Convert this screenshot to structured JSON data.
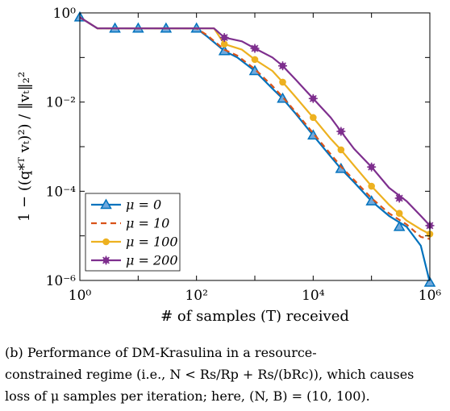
{
  "chart_data": {
    "type": "line",
    "xlabel": "# of samples (T) received",
    "ylabel": "1 − ((q*ᵀ vₜ)²) / ‖vₜ‖₂²",
    "xscale": "log",
    "yscale": "log",
    "xlim": [
      1,
      1000000
    ],
    "ylim": [
      1e-06,
      1
    ],
    "x_ticks": [
      {
        "value": 1,
        "label": "10⁰"
      },
      {
        "value": 100,
        "label": "10²"
      },
      {
        "value": 10000,
        "label": "10⁴"
      },
      {
        "value": 1000000,
        "label": "10⁶"
      }
    ],
    "y_ticks": [
      {
        "value": 1,
        "label": "10⁰"
      },
      {
        "value": 0.01,
        "label": "10⁻²"
      },
      {
        "value": 0.0001,
        "label": "10⁻⁴"
      },
      {
        "value": 1e-06,
        "label": "10⁻⁶"
      }
    ],
    "grid": false,
    "legend_position": "bottom-left",
    "series": [
      {
        "name": "μ = 0",
        "color": "#0072BD",
        "line_style": "solid",
        "marker": "triangle",
        "x": [
          1,
          2,
          4,
          10,
          30,
          100,
          150,
          300,
          500,
          1000,
          2000,
          3000,
          5000,
          10000,
          20000,
          30000,
          50000,
          100000,
          200000,
          400000,
          700000,
          1000000
        ],
        "y": [
          0.8,
          0.45,
          0.45,
          0.45,
          0.45,
          0.45,
          0.3,
          0.14,
          0.1,
          0.05,
          0.02,
          0.012,
          0.0055,
          0.0018,
          0.0006,
          0.00032,
          0.00016,
          6e-05,
          2.8e-05,
          1.6e-05,
          6e-06,
          9e-07
        ],
        "markers_x": [
          1,
          4,
          10,
          30,
          100,
          300,
          1000,
          3000,
          10000,
          30000,
          100000,
          300000,
          1000000
        ],
        "markers_y": [
          0.8,
          0.45,
          0.45,
          0.45,
          0.45,
          0.14,
          0.05,
          0.012,
          0.0018,
          0.00032,
          6e-05,
          1.6e-05,
          9e-07
        ]
      },
      {
        "name": "μ = 10",
        "color": "#D95319",
        "line_style": "dashed",
        "marker": "none",
        "x": [
          1,
          2,
          4,
          10,
          30,
          100,
          150,
          300,
          500,
          1000,
          2000,
          3000,
          5000,
          10000,
          20000,
          30000,
          50000,
          100000,
          200000,
          400000,
          700000,
          1000000
        ],
        "y": [
          0.8,
          0.45,
          0.45,
          0.45,
          0.45,
          0.45,
          0.32,
          0.15,
          0.11,
          0.055,
          0.023,
          0.013,
          0.006,
          0.002,
          0.00068,
          0.00036,
          0.00018,
          7e-05,
          3.2e-05,
          1.8e-05,
          9.5e-06,
          8.5e-06
        ]
      },
      {
        "name": "μ = 100",
        "color": "#EDB120",
        "line_style": "solid",
        "marker": "circle",
        "x": [
          1,
          2,
          4,
          10,
          30,
          100,
          200,
          300,
          600,
          1000,
          2000,
          3000,
          5000,
          10000,
          20000,
          30000,
          50000,
          100000,
          200000,
          400000,
          700000,
          1000000
        ],
        "y": [
          0.8,
          0.45,
          0.45,
          0.45,
          0.45,
          0.45,
          0.45,
          0.2,
          0.15,
          0.09,
          0.05,
          0.028,
          0.013,
          0.0045,
          0.0015,
          0.00085,
          0.00038,
          0.00013,
          5e-05,
          2.2e-05,
          1.4e-05,
          1.1e-05
        ],
        "markers_x": [
          300,
          1000,
          3000,
          10000,
          30000,
          100000,
          300000,
          1000000
        ],
        "markers_y": [
          0.2,
          0.09,
          0.028,
          0.0045,
          0.00085,
          0.00013,
          3.2e-05,
          1.1e-05
        ]
      },
      {
        "name": "μ = 200",
        "color": "#7E2F8E",
        "line_style": "solid",
        "marker": "star",
        "x": [
          1,
          2,
          4,
          10,
          30,
          100,
          200,
          300,
          600,
          1000,
          2000,
          3000,
          5000,
          10000,
          20000,
          30000,
          50000,
          100000,
          200000,
          400000,
          700000,
          1000000
        ],
        "y": [
          0.8,
          0.45,
          0.45,
          0.45,
          0.45,
          0.45,
          0.45,
          0.28,
          0.23,
          0.16,
          0.1,
          0.065,
          0.032,
          0.012,
          0.0045,
          0.0022,
          0.0009,
          0.00035,
          0.00012,
          6e-05,
          2.8e-05,
          1.7e-05
        ],
        "markers_x": [
          300,
          1000,
          3000,
          10000,
          30000,
          100000,
          300000,
          1000000
        ],
        "markers_y": [
          0.28,
          0.16,
          0.065,
          0.012,
          0.0022,
          0.00035,
          7e-05,
          1.7e-05
        ]
      }
    ]
  },
  "caption": {
    "line1": "(b) Performance of DM-Krasulina in a resource-",
    "line2": "constrained regime (i.e., N < Rs/Rp + Rs/(bRc)), which causes",
    "line3": "loss of μ samples per iteration; here, (N, B) = (10, 100)."
  }
}
